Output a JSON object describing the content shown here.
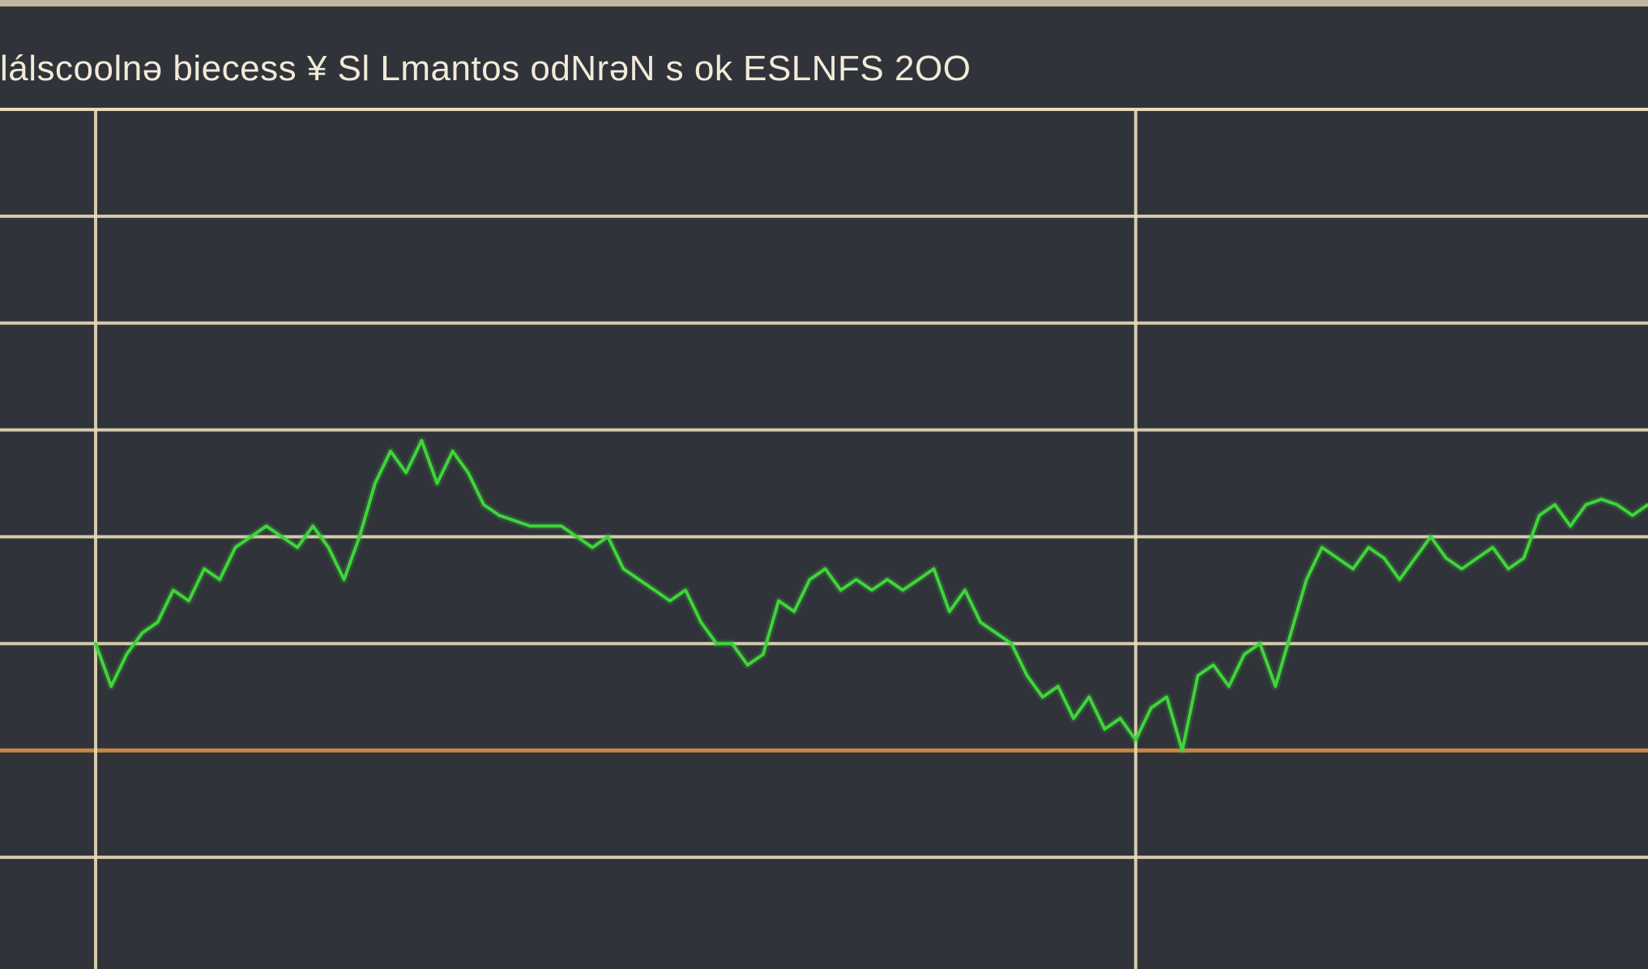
{
  "title": "lálscoolnə biecess ¥ Sl Lmantos odNrəN s ok ESLNFS 2OO",
  "colors": {
    "background": "#30333a",
    "grid": "#e8dcb8",
    "highlight_line": "#d8904a",
    "series": "#3fd43a"
  },
  "chart_data": {
    "type": "line",
    "title": "lálscoolnə biecess ¥ Sl Lmantos odNrəN s ok ESLNFS 2OO",
    "xlabel": "",
    "ylabel": "",
    "grid": true,
    "legend": "none",
    "xlim": [
      0,
      100
    ],
    "ylim": [
      0,
      8
    ],
    "y_gridlines": [
      1,
      2,
      3,
      4,
      5,
      6,
      7
    ],
    "x_gridlines": [
      0,
      67
    ],
    "highlight_y": 2,
    "series": [
      {
        "x": [
          0,
          1,
          2,
          3,
          4,
          5,
          6,
          7,
          8,
          9,
          10,
          11,
          12,
          13,
          14,
          15,
          16,
          17,
          18,
          19,
          20,
          21,
          22,
          23,
          24,
          25,
          26,
          27,
          28,
          29,
          30,
          31,
          32,
          33,
          34,
          35,
          36,
          37,
          38,
          39,
          40,
          41,
          42,
          43,
          44,
          45,
          46,
          47,
          48,
          49,
          50,
          51,
          52,
          53,
          54,
          55,
          56,
          57,
          58,
          59,
          60,
          61,
          62,
          63,
          64,
          65,
          66,
          67,
          68,
          69,
          70,
          71,
          72,
          73,
          74,
          75,
          76,
          77,
          78,
          79,
          80,
          81,
          82,
          83,
          84,
          85,
          86,
          87,
          88,
          89,
          90,
          91,
          92,
          93,
          94,
          95,
          96,
          97,
          98,
          99,
          100
        ],
        "values": [
          3.0,
          2.6,
          2.9,
          3.1,
          3.2,
          3.5,
          3.4,
          3.7,
          3.6,
          3.9,
          4.0,
          4.1,
          4.0,
          3.9,
          4.1,
          3.9,
          3.6,
          4.0,
          4.5,
          4.8,
          4.6,
          4.9,
          4.5,
          4.8,
          4.6,
          4.3,
          4.2,
          4.15,
          4.1,
          4.1,
          4.1,
          4.0,
          3.9,
          4.0,
          3.7,
          3.6,
          3.5,
          3.4,
          3.5,
          3.2,
          3.0,
          3.0,
          2.8,
          2.9,
          3.4,
          3.3,
          3.6,
          3.7,
          3.5,
          3.6,
          3.5,
          3.6,
          3.5,
          3.6,
          3.7,
          3.3,
          3.5,
          3.2,
          3.1,
          3.0,
          2.7,
          2.5,
          2.6,
          2.3,
          2.5,
          2.2,
          2.3,
          2.1,
          2.4,
          2.5,
          2.0,
          2.7,
          2.8,
          2.6,
          2.9,
          3.0,
          2.6,
          3.1,
          3.6,
          3.9,
          3.8,
          3.7,
          3.9,
          3.8,
          3.6,
          3.8,
          4.0,
          3.8,
          3.7,
          3.8,
          3.9,
          3.7,
          3.8,
          4.2,
          4.3,
          4.1,
          4.3,
          4.35,
          4.3,
          4.2,
          4.3
        ]
      }
    ]
  }
}
